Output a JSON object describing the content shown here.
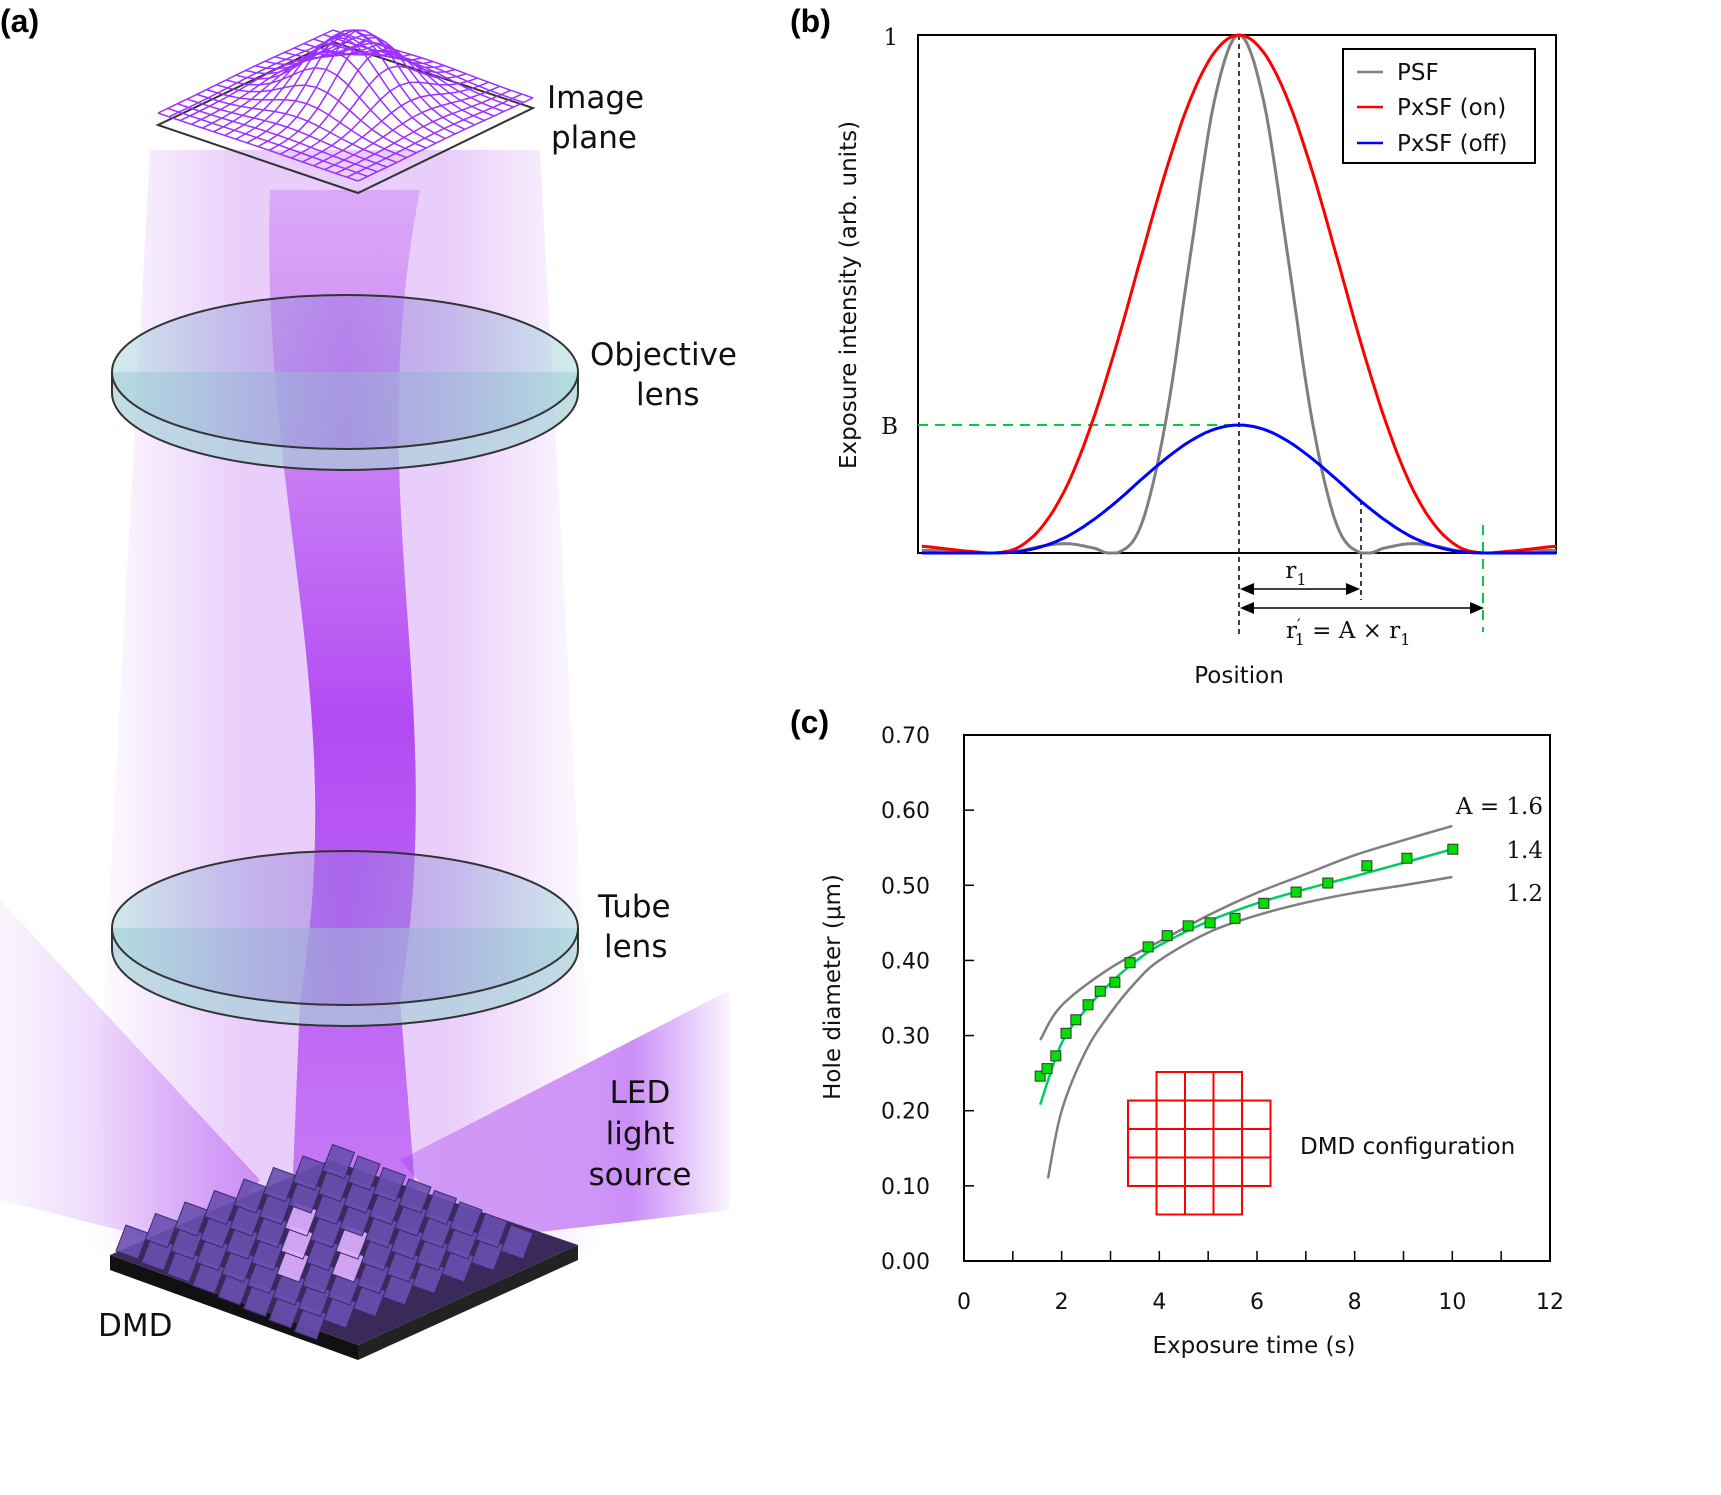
{
  "panel_a": {
    "panel_label": "(a)",
    "labels": {
      "image_plane": [
        "Image",
        "plane"
      ],
      "objective_lens": [
        "Objective",
        "lens"
      ],
      "tube_lens": [
        "Tube",
        "lens"
      ],
      "led_source": [
        "LED",
        "light",
        "source"
      ],
      "dmd": "DMD"
    },
    "colors": {
      "light": "#a020f0",
      "mesh": "#9b30ff",
      "lens": "#a8d8dc",
      "dmd_mirror": "#6a4fb0",
      "dmd_on": "#e0b0ff"
    }
  },
  "chart_data": [
    {
      "panel_label": "(b)",
      "type": "line",
      "xlabel": "Position",
      "ylabel": "Exposure intensity (arb. units)",
      "yticks": [
        "1",
        "B"
      ],
      "ytick_values": [
        1,
        0.247
      ],
      "xlim": [
        -2.6,
        2.6
      ],
      "ylim": [
        0,
        1
      ],
      "grid": false,
      "legend_position": "top-right",
      "x": [
        -2.6,
        -2.4,
        -2.2,
        -2.0,
        -1.8,
        -1.6,
        -1.4,
        -1.2,
        -1.0,
        -0.8,
        -0.6,
        -0.4,
        -0.2,
        0,
        0.2,
        0.4,
        0.6,
        0.8,
        1.0,
        1.2,
        1.4,
        1.6,
        1.8,
        2.0,
        2.2,
        2.4,
        2.6
      ],
      "series": [
        {
          "name": "PSF",
          "color": "#7f7f7f",
          "values": [
            0.005,
            0.006,
            0.003,
            0,
            0.004,
            0.014,
            0.018,
            0.01,
            0,
            0.055,
            0.255,
            0.573,
            0.875,
            1,
            0.875,
            0.573,
            0.255,
            0.055,
            0,
            0.01,
            0.018,
            0.014,
            0.004,
            0,
            0.003,
            0.006,
            0.005
          ]
        },
        {
          "name": "PxSF (on)",
          "color": "#ff0000",
          "values": [
            0.013,
            0.008,
            0.003,
            0,
            0.012,
            0.055,
            0.135,
            0.255,
            0.405,
            0.573,
            0.737,
            0.875,
            0.967,
            1,
            0.967,
            0.875,
            0.737,
            0.573,
            0.405,
            0.255,
            0.135,
            0.055,
            0.012,
            0,
            0.003,
            0.008,
            0.013
          ]
        },
        {
          "name": "PxSF (off)",
          "color": "#0000ff",
          "values": [
            0,
            0,
            0,
            0,
            0.003,
            0.0135,
            0.033,
            0.063,
            0.1,
            0.142,
            0.182,
            0.216,
            0.239,
            0.247,
            0.239,
            0.216,
            0.182,
            0.142,
            0.1,
            0.063,
            0.033,
            0.0135,
            0.003,
            0,
            0,
            0,
            0
          ]
        }
      ],
      "annotations": {
        "B_level": 0.247,
        "r1_position": 1.0,
        "r1_prime_position": 2.0,
        "r1": {
          "base": "r",
          "sub": "1"
        },
        "r1_prime": {
          "base": "r",
          "prime": "′",
          "sub": "1",
          "rhs": " = A × r",
          "rhs_sub": "1"
        },
        "guide_color": "#00cc44"
      }
    },
    {
      "panel_label": "(c)",
      "type": "scatter",
      "xlabel": "Exposure time (s)",
      "ylabel": "Hole diameter (μm)",
      "xlim": [
        0,
        12
      ],
      "ylim": [
        0,
        0.7
      ],
      "xticks": [
        "0",
        "2",
        "4",
        "6",
        "8",
        "10",
        "12"
      ],
      "xtick_values": [
        0,
        2,
        4,
        6,
        8,
        10,
        12
      ],
      "yticks": [
        "0.00",
        "0.10",
        "0.20",
        "0.30",
        "0.40",
        "0.50",
        "0.60",
        "0.70"
      ],
      "ytick_values": [
        0,
        0.1,
        0.2,
        0.3,
        0.4,
        0.5,
        0.6,
        0.7
      ],
      "grid": false,
      "measured": {
        "color": "#00e000",
        "x": [
          1.56,
          1.7,
          1.88,
          2.09,
          2.29,
          2.54,
          2.79,
          3.09,
          3.4,
          3.77,
          4.16,
          4.59,
          5.04,
          5.55,
          6.14,
          6.8,
          7.45,
          8.25,
          9.07,
          10.01
        ],
        "y": [
          0.246,
          0.256,
          0.273,
          0.303,
          0.321,
          0.341,
          0.359,
          0.371,
          0.397,
          0.418,
          0.433,
          0.446,
          0.45,
          0.456,
          0.476,
          0.491,
          0.503,
          0.526,
          0.536,
          0.548
        ]
      },
      "fit": {
        "color": "#00cc66",
        "x": [
          1.56,
          2,
          2.5,
          3,
          3.5,
          4,
          5,
          6,
          7,
          8,
          9,
          10
        ],
        "y": [
          0.208,
          0.29,
          0.335,
          0.37,
          0.398,
          0.42,
          0.452,
          0.476,
          0.495,
          0.512,
          0.53,
          0.548
        ]
      },
      "series": [
        {
          "name": "A = 1.6",
          "color": "#7f7f7f",
          "x": [
            1.56,
            2,
            3,
            4,
            5,
            6,
            7,
            8,
            9,
            10
          ],
          "y": [
            0.294,
            0.34,
            0.39,
            0.425,
            0.46,
            0.49,
            0.515,
            0.54,
            0.56,
            0.579
          ]
        },
        {
          "name": "1.4",
          "color": "#7f7f7f",
          "x": [
            1.56,
            2,
            2.5,
            3,
            3.5,
            4,
            5,
            6,
            7,
            8,
            9,
            10
          ],
          "y": [
            0.208,
            0.29,
            0.335,
            0.37,
            0.398,
            0.42,
            0.452,
            0.476,
            0.495,
            0.512,
            0.53,
            0.548
          ]
        },
        {
          "name": "1.2",
          "color": "#7f7f7f",
          "x": [
            1.72,
            2,
            2.5,
            3,
            3.5,
            4,
            5,
            6,
            7,
            8,
            9,
            10
          ],
          "y": [
            0.11,
            0.2,
            0.28,
            0.33,
            0.37,
            0.4,
            0.437,
            0.46,
            0.477,
            0.49,
            0.5,
            0.511
          ]
        }
      ],
      "inset": {
        "label": "DMD configuration",
        "color": "#ff0000",
        "rows": [
          [
            0,
            1,
            1,
            1,
            0
          ],
          [
            1,
            1,
            1,
            1,
            1
          ],
          [
            1,
            1,
            1,
            1,
            1
          ],
          [
            1,
            1,
            1,
            1,
            1
          ],
          [
            0,
            1,
            1,
            1,
            0
          ]
        ]
      }
    }
  ]
}
